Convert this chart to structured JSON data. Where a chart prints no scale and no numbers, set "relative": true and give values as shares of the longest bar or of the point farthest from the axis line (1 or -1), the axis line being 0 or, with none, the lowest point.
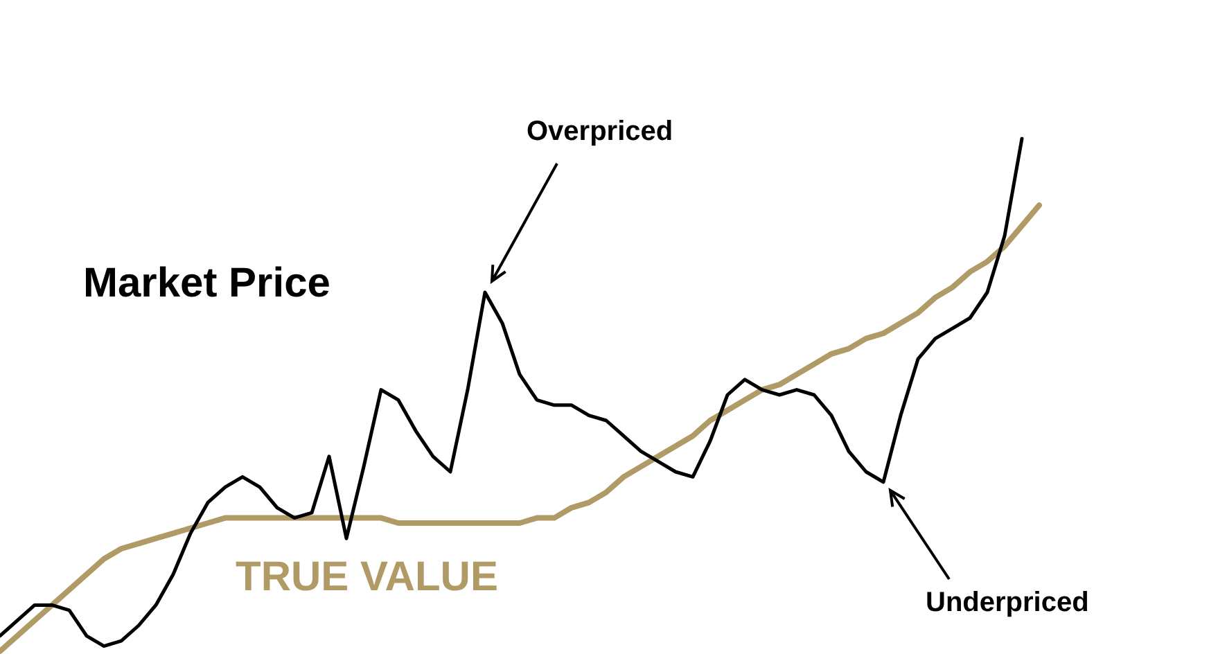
{
  "chart_data": {
    "type": "line",
    "relative": true,
    "legend": false,
    "grid": false,
    "marker": "none",
    "categories": [
      null,
      null,
      null,
      null,
      null,
      null,
      null,
      null,
      null,
      null,
      null,
      null,
      null,
      null,
      null,
      null,
      null,
      null,
      null,
      null,
      null,
      null,
      null,
      null,
      null,
      null,
      null,
      null,
      null,
      null,
      null,
      null,
      null,
      null,
      null,
      null,
      null,
      null,
      null,
      null,
      null,
      null,
      null,
      null,
      null,
      null,
      null,
      null,
      null,
      null,
      null,
      null,
      null,
      null,
      null,
      null,
      null,
      null,
      null,
      null,
      null
    ],
    "series": [
      {
        "name": "Market Price",
        "color": "#000000",
        "values": [
          0.03,
          0.06,
          0.09,
          0.09,
          0.08,
          0.03,
          0.01,
          0.02,
          0.05,
          0.09,
          0.15,
          0.23,
          0.29,
          0.32,
          0.34,
          0.32,
          0.28,
          0.26,
          0.27,
          0.38,
          0.22,
          0.36,
          0.51,
          0.49,
          0.43,
          0.38,
          0.35,
          0.51,
          0.7,
          0.64,
          0.54,
          0.49,
          0.48,
          0.48,
          0.46,
          0.45,
          0.42,
          0.39,
          0.37,
          0.35,
          0.34,
          0.41,
          0.5,
          0.53,
          0.51,
          0.5,
          0.51,
          0.5,
          0.46,
          0.39,
          0.35,
          0.33,
          0.46,
          0.57,
          0.61,
          0.63,
          0.65,
          0.7,
          0.81,
          1.0,
          null
        ]
      },
      {
        "name": "TRUE VALUE",
        "color": "#b09a66",
        "values": [
          0,
          0.03,
          0.06,
          0.09,
          0.12,
          0.15,
          0.18,
          0.2,
          0.21,
          0.22,
          0.23,
          0.24,
          0.25,
          0.26,
          0.26,
          0.26,
          0.26,
          0.26,
          0.26,
          0.26,
          0.26,
          0.26,
          0.26,
          0.25,
          0.25,
          0.25,
          0.25,
          0.25,
          0.25,
          0.25,
          0.25,
          0.26,
          0.26,
          0.28,
          0.29,
          0.31,
          0.34,
          0.36,
          0.38,
          0.4,
          0.42,
          0.45,
          0.47,
          0.49,
          0.51,
          0.52,
          0.54,
          0.56,
          0.58,
          0.59,
          0.61,
          0.62,
          0.64,
          0.66,
          0.69,
          0.71,
          0.74,
          0.76,
          0.79,
          0.83,
          0.87
        ]
      }
    ],
    "annotations": [
      "Overpriced",
      "Underpriced"
    ]
  }
}
